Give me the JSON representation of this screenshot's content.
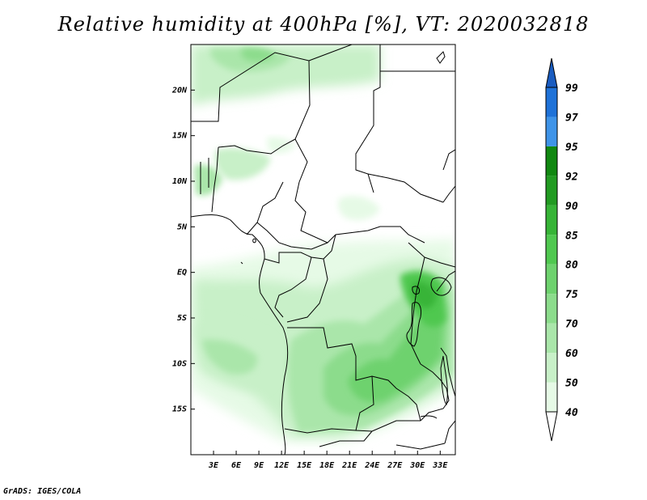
{
  "title": "Relative humidity at 400hPa [%], VT: 2020032818",
  "credit": "GrADS: IGES/COLA",
  "map": {
    "lon_range": [
      0,
      35
    ],
    "lat_range": [
      -20,
      25
    ],
    "lat_ticks": [
      {
        "value": 20,
        "label": "20N"
      },
      {
        "value": 15,
        "label": "15N"
      },
      {
        "value": 10,
        "label": "10N"
      },
      {
        "value": 5,
        "label": "5N"
      },
      {
        "value": 0,
        "label": "EQ"
      },
      {
        "value": -5,
        "label": "5S"
      },
      {
        "value": -10,
        "label": "10S"
      },
      {
        "value": -15,
        "label": "15S"
      }
    ],
    "lon_ticks": [
      {
        "value": 3,
        "label": "3E"
      },
      {
        "value": 6,
        "label": "6E"
      },
      {
        "value": 9,
        "label": "9E"
      },
      {
        "value": 12,
        "label": "12E"
      },
      {
        "value": 15,
        "label": "15E"
      },
      {
        "value": 18,
        "label": "18E"
      },
      {
        "value": 21,
        "label": "21E"
      },
      {
        "value": 24,
        "label": "24E"
      },
      {
        "value": 27,
        "label": "27E"
      },
      {
        "value": 30,
        "label": "30E"
      },
      {
        "value": 33,
        "label": "33E"
      }
    ]
  },
  "colorbar": {
    "levels": [
      "40",
      "50",
      "60",
      "70",
      "75",
      "80",
      "85",
      "90",
      "92",
      "95",
      "97",
      "99"
    ],
    "colors": [
      "#ffffff",
      "#e6fae6",
      "#c8f0c8",
      "#aae6aa",
      "#8cdc8c",
      "#6ed26e",
      "#50c850",
      "#37b437",
      "#229b22",
      "#118811",
      "#3f94e8",
      "#1f72d8",
      "#1a5cc0"
    ]
  }
}
